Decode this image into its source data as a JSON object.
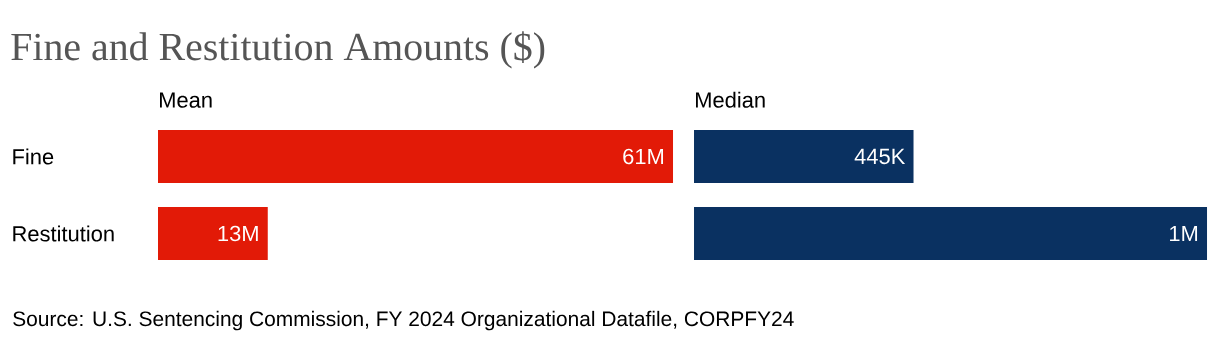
{
  "chart_data": [
    {
      "type": "other",
      "title": "Fine and Restitution Amounts ($)",
      "annotations": [
        "Source: U.S. Sentencing Commission, FY 2024 Organizational Datafile, CORPFY24"
      ]
    },
    {
      "type": "bar",
      "orientation": "horizontal",
      "title": "Mean",
      "categories": [
        "Fine",
        "Restitution"
      ],
      "values": [
        61000000,
        13000000
      ],
      "value_labels": [
        "61M",
        "13M"
      ],
      "color": "#e21a07",
      "tick_labels": "y"
    },
    {
      "type": "bar",
      "orientation": "horizontal",
      "title": "Median",
      "categories": [
        null,
        null
      ],
      "values": [
        445000,
        1040000
      ],
      "value_labels": [
        "445K",
        "1M"
      ],
      "color": "#0a3161",
      "tick_labels": false
    }
  ]
}
